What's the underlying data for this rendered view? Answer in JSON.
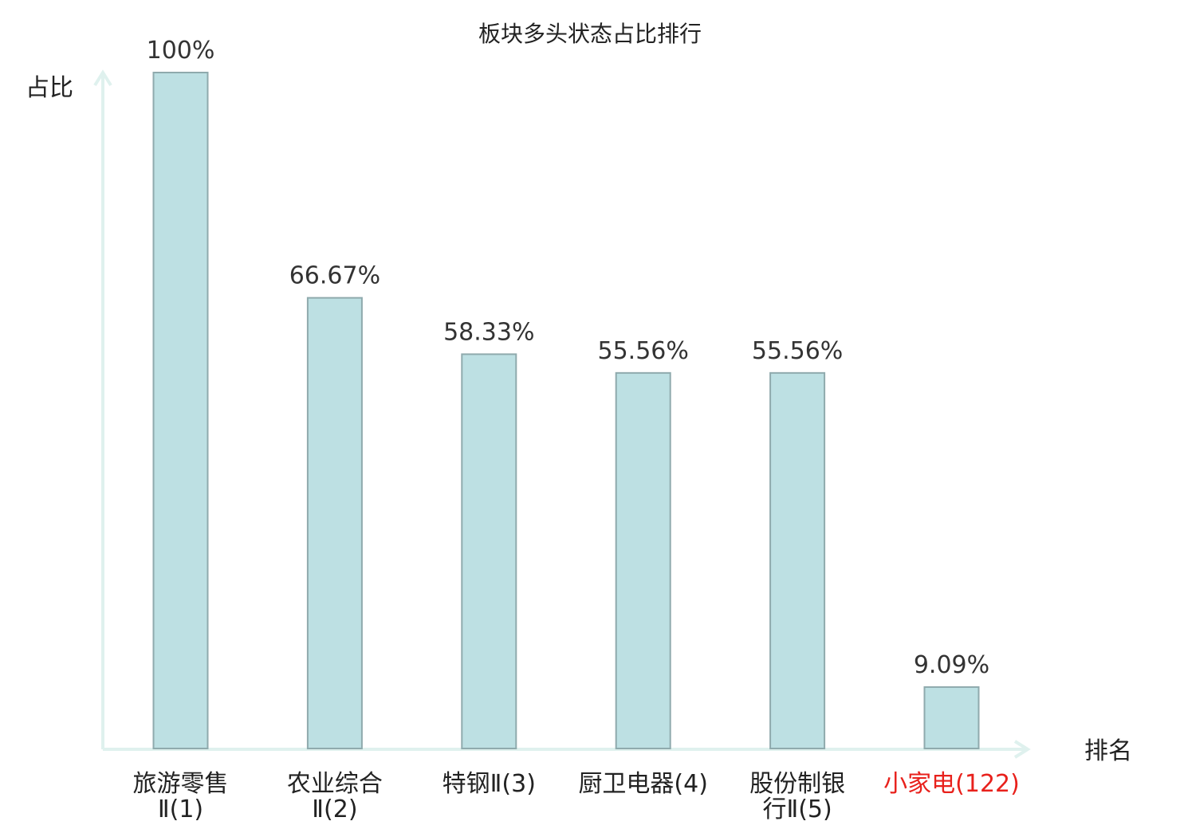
{
  "chart_data": {
    "type": "bar",
    "title": "板块多头状态占比排行",
    "ylabel": "占比",
    "xlabel": "排名",
    "ylim": [
      0,
      100
    ],
    "grid": false,
    "categories": [
      [
        "旅游零售",
        "Ⅱ(1)"
      ],
      [
        "农业综合",
        "Ⅱ(2)"
      ],
      [
        "特钢Ⅱ(3)"
      ],
      [
        "厨卫电器(4)"
      ],
      [
        "股份制银",
        "行Ⅱ(5)"
      ],
      [
        "小家电(122)"
      ]
    ],
    "values": [
      100,
      66.67,
      58.33,
      55.56,
      55.56,
      9.09
    ],
    "value_labels": [
      "100%",
      "66.67%",
      "58.33%",
      "55.56%",
      "55.56%",
      "9.09%"
    ],
    "highlight_index": 5,
    "colors": {
      "bar_fill": "#bde0e3",
      "bar_stroke": "#8faaad",
      "axis": "#dff1ee",
      "label": "#222222",
      "value_label": "#333333",
      "highlight": "#e8211c"
    }
  }
}
